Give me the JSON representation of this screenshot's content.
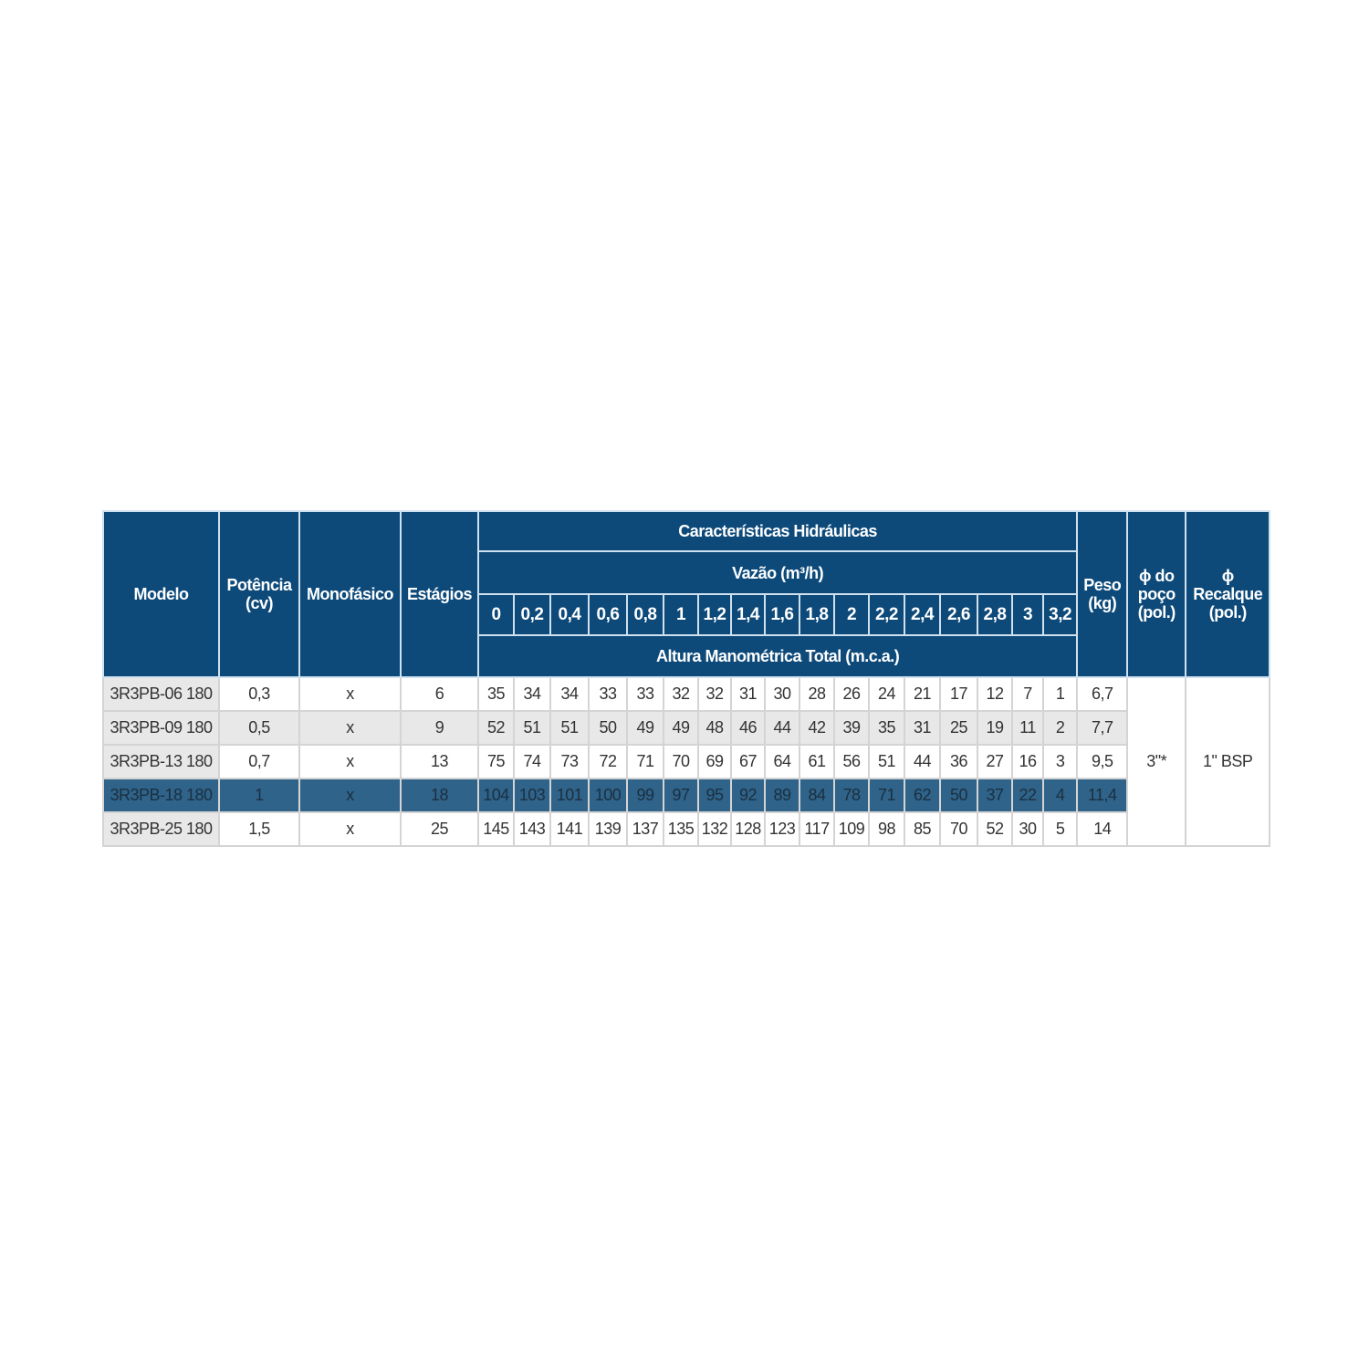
{
  "headers": {
    "modelo": "Modelo",
    "potencia": "Potência (cv)",
    "monofasico": "Monofásico",
    "estagios": "Estágios",
    "caracteristicas": "Características Hidráulicas",
    "vazao": "Vazão (m³/h)",
    "altura": "Altura Manométrica Total (m.c.a.)",
    "peso": "Peso (kg)",
    "poco": "ϕ do poço (pol.)",
    "recalque": "ϕ Recalque (pol.)"
  },
  "flows": [
    "0",
    "0,2",
    "0,4",
    "0,6",
    "0,8",
    "1",
    "1,2",
    "1,4",
    "1,6",
    "1,8",
    "2",
    "2,2",
    "2,4",
    "2,6",
    "2,8",
    "3",
    "3,2"
  ],
  "rows": [
    {
      "modelo": "3R3PB-06 180",
      "potencia": "0,3",
      "mono": "x",
      "estagios": "6",
      "heads": [
        "35",
        "34",
        "34",
        "33",
        "33",
        "32",
        "32",
        "31",
        "30",
        "28",
        "26",
        "24",
        "21",
        "17",
        "12",
        "7",
        "1"
      ],
      "peso": "6,7"
    },
    {
      "modelo": "3R3PB-09 180",
      "potencia": "0,5",
      "mono": "x",
      "estagios": "9",
      "heads": [
        "52",
        "51",
        "51",
        "50",
        "49",
        "49",
        "48",
        "46",
        "44",
        "42",
        "39",
        "35",
        "31",
        "25",
        "19",
        "11",
        "2"
      ],
      "peso": "7,7"
    },
    {
      "modelo": "3R3PB-13 180",
      "potencia": "0,7",
      "mono": "x",
      "estagios": "13",
      "heads": [
        "75",
        "74",
        "73",
        "72",
        "71",
        "70",
        "69",
        "67",
        "64",
        "61",
        "56",
        "51",
        "44",
        "36",
        "27",
        "16",
        "3"
      ],
      "peso": "9,5"
    },
    {
      "modelo": "3R3PB-18 180",
      "potencia": "1",
      "mono": "x",
      "estagios": "18",
      "heads": [
        "104",
        "103",
        "101",
        "100",
        "99",
        "97",
        "95",
        "92",
        "89",
        "84",
        "78",
        "71",
        "62",
        "50",
        "37",
        "22",
        "4"
      ],
      "peso": "11,4",
      "highlighted": true
    },
    {
      "modelo": "3R3PB-25 180",
      "potencia": "1,5",
      "mono": "x",
      "estagios": "25",
      "heads": [
        "145",
        "143",
        "141",
        "139",
        "137",
        "135",
        "132",
        "128",
        "123",
        "117",
        "109",
        "98",
        "85",
        "70",
        "52",
        "30",
        "5"
      ],
      "peso": "14"
    }
  ],
  "poco_value": "3\"*",
  "recalque_value": "1\" BSP",
  "colors": {
    "header": "#0d4a7a",
    "highlight": "#2f6389",
    "alt_row": "#e8e8e8"
  }
}
